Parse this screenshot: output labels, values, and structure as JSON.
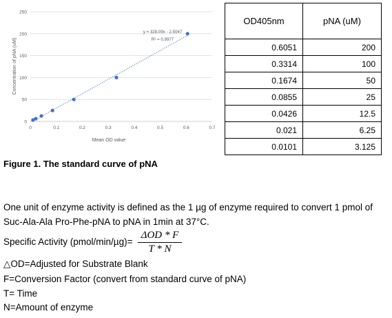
{
  "chart_data": {
    "type": "scatter",
    "xlabel": "Mean OD value",
    "ylabel": "Concentration of pNA (uM)",
    "xlim": [
      0,
      0.7
    ],
    "ylim": [
      0,
      250
    ],
    "x_ticks": [
      "0",
      "0.1",
      "0.2",
      "0.3",
      "0.4",
      "0.5",
      "0.6",
      "0.7"
    ],
    "y_ticks": [
      "0",
      "50",
      "100",
      "150",
      "200",
      "250"
    ],
    "grid": "horizontal",
    "trendline": "linear, dotted",
    "equation": "y = 328.09x - 2.5047",
    "r_squared": "R² = 0.9977",
    "points": [
      {
        "x": 0.6051,
        "y": 200
      },
      {
        "x": 0.3314,
        "y": 100
      },
      {
        "x": 0.1674,
        "y": 50
      },
      {
        "x": 0.0855,
        "y": 25
      },
      {
        "x": 0.0426,
        "y": 12.5
      },
      {
        "x": 0.021,
        "y": 6.25
      },
      {
        "x": 0.0101,
        "y": 3.125
      }
    ],
    "colors": {
      "points": "#4472c4",
      "trendline": "#4472c4",
      "grid": "#d9d9d9",
      "text": "#595959"
    }
  },
  "table": {
    "headers": [
      "OD405nm",
      "pNA (uM)"
    ],
    "rows": [
      [
        "0.6051",
        "200"
      ],
      [
        "0.3314",
        "100"
      ],
      [
        "0.1674",
        "50"
      ],
      [
        "0.0855",
        "25"
      ],
      [
        "0.0426",
        "12.5"
      ],
      [
        "0.021",
        "6.25"
      ],
      [
        "0.0101",
        "3.125"
      ]
    ]
  },
  "caption": "Figure 1. The standard curve of pNA",
  "definition": "One unit of enzyme activity is defined as the 1 µg of enzyme required to convert 1 pmol of Suc-Ala-Ala Pro-Phe-pNA to pNA in 1min at 37°C.",
  "specific_activity_label": "Specific Activity (pmol/min/µg)=",
  "formula": {
    "numerator": "ΔOD * F",
    "denominator": "T * N"
  },
  "legend_lines": [
    "△OD=Adjusted for Substrate Blank",
    "F=Conversion Factor (convert from standard curve of pNA)",
    "T= Time",
    "N=Amount of enzyme"
  ]
}
